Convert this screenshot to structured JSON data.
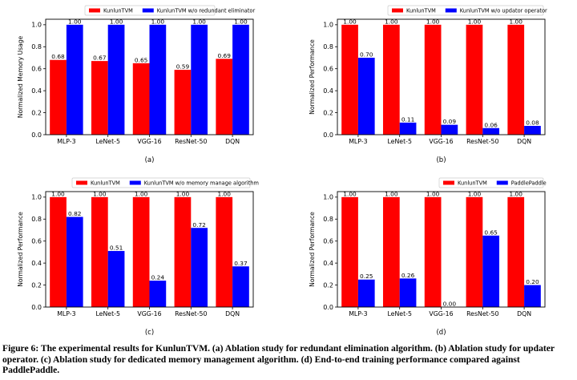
{
  "caption": "Figure 6: The experimental results for KunlunTVM. (a) Ablation study for redundant elimination algorithm. (b) Ablation study for updater operator. (c) Ablation study for dedicated memory management algorithm. (d) End-to-end training performance compared against PaddlePaddle.",
  "colors": {
    "series1": "#ff0000",
    "series2": "#0000ff"
  },
  "chart_data": [
    {
      "type": "bar",
      "panel_label": "(a)",
      "categories": [
        "MLP-3",
        "LeNet-5",
        "VGG-16",
        "ResNet-50",
        "DQN"
      ],
      "series": [
        {
          "name": "KunlunTVM",
          "values": [
            0.68,
            0.67,
            0.65,
            0.59,
            0.69
          ],
          "labels": [
            "0.68",
            "0.67",
            "0.65",
            "0.59",
            "0.69"
          ]
        },
        {
          "name": "KunlunTVM w/o redundant eliminator",
          "values": [
            1.0,
            1.0,
            1.0,
            1.0,
            1.0
          ],
          "labels": [
            "1.00",
            "1.00",
            "1.00",
            "1.00",
            "1.00"
          ]
        }
      ],
      "xlabel": "",
      "ylabel": "Normalized Memory Usage",
      "ylim": [
        0,
        1.05
      ],
      "yticks": [
        "0.0",
        "0.2",
        "0.4",
        "0.6",
        "0.8",
        "1.0"
      ],
      "legend": "top-center"
    },
    {
      "type": "bar",
      "panel_label": "(b)",
      "categories": [
        "MLP-3",
        "LeNet-5",
        "VGG-16",
        "ResNet-50",
        "DQN"
      ],
      "series": [
        {
          "name": "KunlunTVM",
          "values": [
            1.0,
            1.0,
            1.0,
            1.0,
            1.0
          ],
          "labels": [
            "1.00",
            "1.00",
            "1.00",
            "1.00",
            "1.00"
          ]
        },
        {
          "name": "KunlunTVM w/o updator operator",
          "values": [
            0.7,
            0.11,
            0.09,
            0.06,
            0.08
          ],
          "labels": [
            "0.70",
            "0.11",
            "0.09",
            "0.06",
            "0.08"
          ]
        }
      ],
      "xlabel": "",
      "ylabel": "Normalized Performance",
      "ylim": [
        0,
        1.05
      ],
      "yticks": [
        "0.0",
        "0.2",
        "0.4",
        "0.6",
        "0.8",
        "1.0"
      ],
      "legend": "top-right"
    },
    {
      "type": "bar",
      "panel_label": "(c)",
      "categories": [
        "MLP-3",
        "LeNet-5",
        "VGG-16",
        "ResNet-50",
        "DQN"
      ],
      "series": [
        {
          "name": "KunlunTVM",
          "values": [
            1.0,
            1.0,
            1.0,
            1.0,
            1.0
          ],
          "labels": [
            "1.00",
            "1.00",
            "1.00",
            "1.00",
            "1.00"
          ]
        },
        {
          "name": "KunlunTVM w/o memory manage algorithm",
          "values": [
            0.82,
            0.51,
            0.24,
            0.72,
            0.37
          ],
          "labels": [
            "0.82",
            "0.51",
            "0.24",
            "0.72",
            "0.37"
          ]
        }
      ],
      "xlabel": "",
      "ylabel": "Normalized Performance",
      "ylim": [
        0,
        1.05
      ],
      "yticks": [
        "0.0",
        "0.2",
        "0.4",
        "0.6",
        "0.8",
        "1.0"
      ],
      "legend": "top-right"
    },
    {
      "type": "bar",
      "panel_label": "(d)",
      "categories": [
        "MLP-3",
        "LeNet-5",
        "VGG-16",
        "ResNet-50",
        "DQN"
      ],
      "series": [
        {
          "name": "KunlunTVM",
          "values": [
            1.0,
            1.0,
            1.0,
            1.0,
            1.0
          ],
          "labels": [
            "1.00",
            "1.00",
            "1.00",
            "1.00",
            "1.00"
          ]
        },
        {
          "name": "PaddlePaddle",
          "values": [
            0.25,
            0.26,
            0.0,
            0.65,
            0.2
          ],
          "labels": [
            "0.25",
            "0.26",
            "0.00",
            "0.65",
            "0.20"
          ]
        }
      ],
      "xlabel": "",
      "ylabel": "Normalized Performance",
      "ylim": [
        0,
        1.05
      ],
      "yticks": [
        "0.0",
        "0.2",
        "0.4",
        "0.6",
        "0.8",
        "1.0"
      ],
      "legend": "top-right"
    }
  ]
}
